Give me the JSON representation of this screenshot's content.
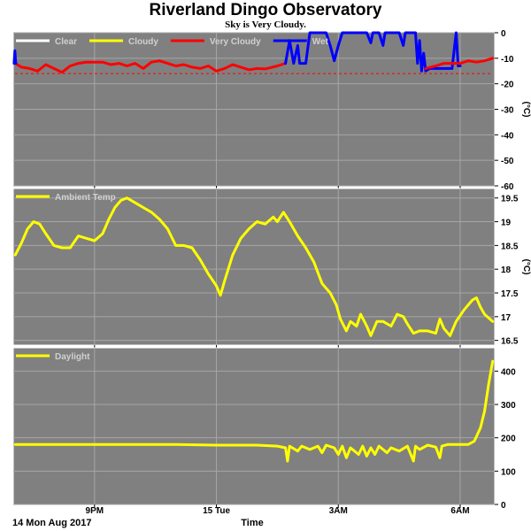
{
  "header": {
    "title": "Riverland Dingo Observatory",
    "subtitle": "Sky is Very Cloudy."
  },
  "footer": {
    "date_label": "14 Mon Aug 2017",
    "time_label": "Time"
  },
  "colors": {
    "background": "#ffffff",
    "plot_bg": "#808080",
    "grid": "#a6a6a6",
    "clear": "#ffffff",
    "cloudy": "#ffff00",
    "very_cloudy": "#ff0000",
    "wet": "#0000ff",
    "threshold": "#ff0000"
  },
  "chart_data": [
    {
      "type": "line",
      "name": "sky-temperature",
      "legend": [
        "Clear",
        "Cloudy",
        "Very Cloudy",
        "Wet"
      ],
      "legend_colors": [
        "#ffffff",
        "#ffff00",
        "#ff0000",
        "#0000ff"
      ],
      "ylabel": "(°C)",
      "ylim": [
        -60,
        0
      ],
      "yticks": [
        0,
        -10,
        -20,
        -30,
        -40,
        -50,
        -60
      ],
      "threshold": -16,
      "xlim": [
        19.0,
        30.85
      ],
      "xticks": [
        {
          "x": 21,
          "label": "9PM"
        },
        {
          "x": 24,
          "label": "15 Tue"
        },
        {
          "x": 27,
          "label": "3AM"
        },
        {
          "x": 30,
          "label": "6AM"
        }
      ],
      "series": [
        {
          "color": "#ff0000",
          "points": [
            [
              19.05,
              -12
            ],
            [
              19.2,
              -13.5
            ],
            [
              19.4,
              -14
            ],
            [
              19.6,
              -15
            ],
            [
              19.8,
              -12.5
            ],
            [
              20.0,
              -14
            ],
            [
              20.2,
              -15.5
            ],
            [
              20.4,
              -13
            ],
            [
              20.6,
              -12
            ],
            [
              20.8,
              -11.5
            ],
            [
              21.0,
              -11.5
            ],
            [
              21.2,
              -11.5
            ],
            [
              21.4,
              -12.5
            ],
            [
              21.6,
              -12
            ],
            [
              21.8,
              -13
            ],
            [
              22.0,
              -12
            ],
            [
              22.2,
              -14
            ],
            [
              22.4,
              -11.5
            ],
            [
              22.6,
              -11
            ],
            [
              22.8,
              -12
            ],
            [
              23.0,
              -13
            ],
            [
              23.2,
              -12.5
            ],
            [
              23.4,
              -13.5
            ],
            [
              23.6,
              -14
            ],
            [
              23.8,
              -13
            ],
            [
              24.0,
              -15
            ],
            [
              24.2,
              -14
            ],
            [
              24.4,
              -12.5
            ],
            [
              24.6,
              -13.5
            ],
            [
              24.8,
              -14.5
            ],
            [
              25.0,
              -14
            ],
            [
              25.2,
              -14.2
            ],
            [
              25.5,
              -13
            ],
            [
              25.7,
              -12
            ]
          ]
        },
        {
          "color": "#0000ff",
          "points": [
            [
              19.02,
              -12
            ],
            [
              19.04,
              -7
            ],
            [
              19.06,
              -12
            ]
          ]
        },
        {
          "color": "#0000ff",
          "points": [
            [
              25.7,
              -12
            ],
            [
              25.8,
              -3
            ],
            [
              25.9,
              -12
            ],
            [
              26.0,
              -5
            ],
            [
              26.05,
              -12
            ],
            [
              26.2,
              -12
            ],
            [
              26.3,
              0
            ],
            [
              26.7,
              0
            ],
            [
              26.8,
              -5
            ],
            [
              26.9,
              -11
            ],
            [
              27.0,
              -5
            ],
            [
              27.1,
              0
            ],
            [
              27.7,
              0
            ],
            [
              27.8,
              -4
            ],
            [
              27.85,
              0
            ],
            [
              28.0,
              0
            ],
            [
              28.1,
              -5
            ],
            [
              28.15,
              0
            ],
            [
              28.5,
              0
            ],
            [
              28.6,
              -5
            ],
            [
              28.65,
              0
            ],
            [
              28.9,
              0
            ],
            [
              28.95,
              -12
            ],
            [
              29.0,
              -3
            ],
            [
              29.05,
              -15
            ],
            [
              29.1,
              -8
            ],
            [
              29.15,
              -15
            ],
            [
              29.25,
              -14
            ],
            [
              29.8,
              -14
            ],
            [
              29.9,
              0
            ],
            [
              29.95,
              -13
            ],
            [
              30.0,
              -13
            ]
          ]
        },
        {
          "color": "#ff0000",
          "points": [
            [
              29.15,
              -14
            ],
            [
              29.4,
              -13
            ],
            [
              29.6,
              -12
            ],
            [
              29.8,
              -12
            ],
            [
              30.0,
              -12
            ],
            [
              30.2,
              -11
            ],
            [
              30.4,
              -11.5
            ],
            [
              30.6,
              -11
            ],
            [
              30.8,
              -10
            ]
          ]
        }
      ]
    },
    {
      "type": "line",
      "name": "ambient-temperature",
      "legend": [
        "Ambient Temp"
      ],
      "legend_colors": [
        "#ffff00"
      ],
      "ylabel": "(°C)",
      "ylim": [
        16.4,
        19.7
      ],
      "yticks": [
        19.5,
        19.0,
        18.5,
        18.0,
        17.5,
        17.0,
        16.5
      ],
      "xlim": [
        19.0,
        30.85
      ],
      "xticks": [
        {
          "x": 21,
          "label": "9PM"
        },
        {
          "x": 24,
          "label": "15 Tue"
        },
        {
          "x": 27,
          "label": "3AM"
        },
        {
          "x": 30,
          "label": "6AM"
        }
      ],
      "series": [
        {
          "color": "#ffff00",
          "points": [
            [
              19.05,
              18.3
            ],
            [
              19.2,
              18.55
            ],
            [
              19.35,
              18.85
            ],
            [
              19.5,
              19.0
            ],
            [
              19.65,
              18.95
            ],
            [
              19.8,
              18.75
            ],
            [
              20.0,
              18.5
            ],
            [
              20.2,
              18.45
            ],
            [
              20.4,
              18.45
            ],
            [
              20.6,
              18.7
            ],
            [
              20.8,
              18.65
            ],
            [
              21.0,
              18.6
            ],
            [
              21.2,
              18.75
            ],
            [
              21.35,
              19.05
            ],
            [
              21.5,
              19.3
            ],
            [
              21.65,
              19.45
            ],
            [
              21.8,
              19.5
            ],
            [
              22.0,
              19.4
            ],
            [
              22.2,
              19.3
            ],
            [
              22.4,
              19.2
            ],
            [
              22.6,
              19.05
            ],
            [
              22.8,
              18.85
            ],
            [
              23.0,
              18.5
            ],
            [
              23.2,
              18.5
            ],
            [
              23.4,
              18.45
            ],
            [
              23.6,
              18.2
            ],
            [
              23.8,
              17.9
            ],
            [
              24.0,
              17.65
            ],
            [
              24.1,
              17.45
            ],
            [
              24.2,
              17.75
            ],
            [
              24.4,
              18.3
            ],
            [
              24.6,
              18.65
            ],
            [
              24.8,
              18.85
            ],
            [
              25.0,
              19.0
            ],
            [
              25.2,
              18.95
            ],
            [
              25.4,
              19.1
            ],
            [
              25.5,
              19.0
            ],
            [
              25.65,
              19.2
            ],
            [
              25.8,
              19.0
            ],
            [
              26.0,
              18.7
            ],
            [
              26.2,
              18.45
            ],
            [
              26.4,
              18.15
            ],
            [
              26.6,
              17.7
            ],
            [
              26.8,
              17.5
            ],
            [
              26.95,
              17.25
            ],
            [
              27.05,
              16.95
            ],
            [
              27.2,
              16.7
            ],
            [
              27.3,
              16.9
            ],
            [
              27.45,
              16.8
            ],
            [
              27.55,
              17.05
            ],
            [
              27.7,
              16.8
            ],
            [
              27.8,
              16.6
            ],
            [
              27.95,
              16.9
            ],
            [
              28.1,
              16.9
            ],
            [
              28.3,
              16.8
            ],
            [
              28.45,
              17.05
            ],
            [
              28.6,
              17.0
            ],
            [
              28.7,
              16.85
            ],
            [
              28.85,
              16.65
            ],
            [
              29.0,
              16.7
            ],
            [
              29.2,
              16.7
            ],
            [
              29.4,
              16.65
            ],
            [
              29.5,
              16.95
            ],
            [
              29.6,
              16.75
            ],
            [
              29.75,
              16.6
            ],
            [
              29.9,
              16.9
            ],
            [
              30.1,
              17.15
            ],
            [
              30.3,
              17.35
            ],
            [
              30.4,
              17.4
            ],
            [
              30.5,
              17.2
            ],
            [
              30.6,
              17.05
            ],
            [
              30.8,
              16.9
            ]
          ]
        }
      ]
    },
    {
      "type": "line",
      "name": "daylight",
      "legend": [
        "Daylight"
      ],
      "legend_colors": [
        "#ffff00"
      ],
      "ylabel": "",
      "ylim": [
        0,
        470
      ],
      "yticks": [
        400,
        300,
        200,
        100,
        0
      ],
      "xlim": [
        19.0,
        30.85
      ],
      "xticks": [
        {
          "x": 21,
          "label": "9PM"
        },
        {
          "x": 24,
          "label": "15 Tue"
        },
        {
          "x": 27,
          "label": "3AM"
        },
        {
          "x": 30,
          "label": "6AM"
        }
      ],
      "series": [
        {
          "color": "#ffff00",
          "points": [
            [
              19.05,
              180
            ],
            [
              20.0,
              180
            ],
            [
              21.0,
              180
            ],
            [
              22.0,
              180
            ],
            [
              23.0,
              180
            ],
            [
              24.0,
              178
            ],
            [
              25.0,
              178
            ],
            [
              25.5,
              175
            ],
            [
              25.7,
              170
            ],
            [
              25.75,
              130
            ],
            [
              25.8,
              175
            ],
            [
              26.0,
              160
            ],
            [
              26.1,
              175
            ],
            [
              26.3,
              165
            ],
            [
              26.5,
              175
            ],
            [
              26.6,
              155
            ],
            [
              26.7,
              178
            ],
            [
              26.9,
              170
            ],
            [
              27.0,
              150
            ],
            [
              27.1,
              175
            ],
            [
              27.2,
              140
            ],
            [
              27.3,
              170
            ],
            [
              27.5,
              150
            ],
            [
              27.6,
              175
            ],
            [
              27.7,
              145
            ],
            [
              27.8,
              170
            ],
            [
              27.9,
              150
            ],
            [
              28.0,
              175
            ],
            [
              28.2,
              155
            ],
            [
              28.3,
              170
            ],
            [
              28.5,
              160
            ],
            [
              28.7,
              175
            ],
            [
              28.85,
              130
            ],
            [
              28.9,
              175
            ],
            [
              29.0,
              165
            ],
            [
              29.2,
              178
            ],
            [
              29.4,
              172
            ],
            [
              29.5,
              140
            ],
            [
              29.55,
              175
            ],
            [
              29.7,
              180
            ],
            [
              30.0,
              180
            ],
            [
              30.2,
              180
            ],
            [
              30.35,
              190
            ],
            [
              30.5,
              230
            ],
            [
              30.6,
              280
            ],
            [
              30.7,
              360
            ],
            [
              30.8,
              430
            ]
          ]
        }
      ]
    }
  ]
}
